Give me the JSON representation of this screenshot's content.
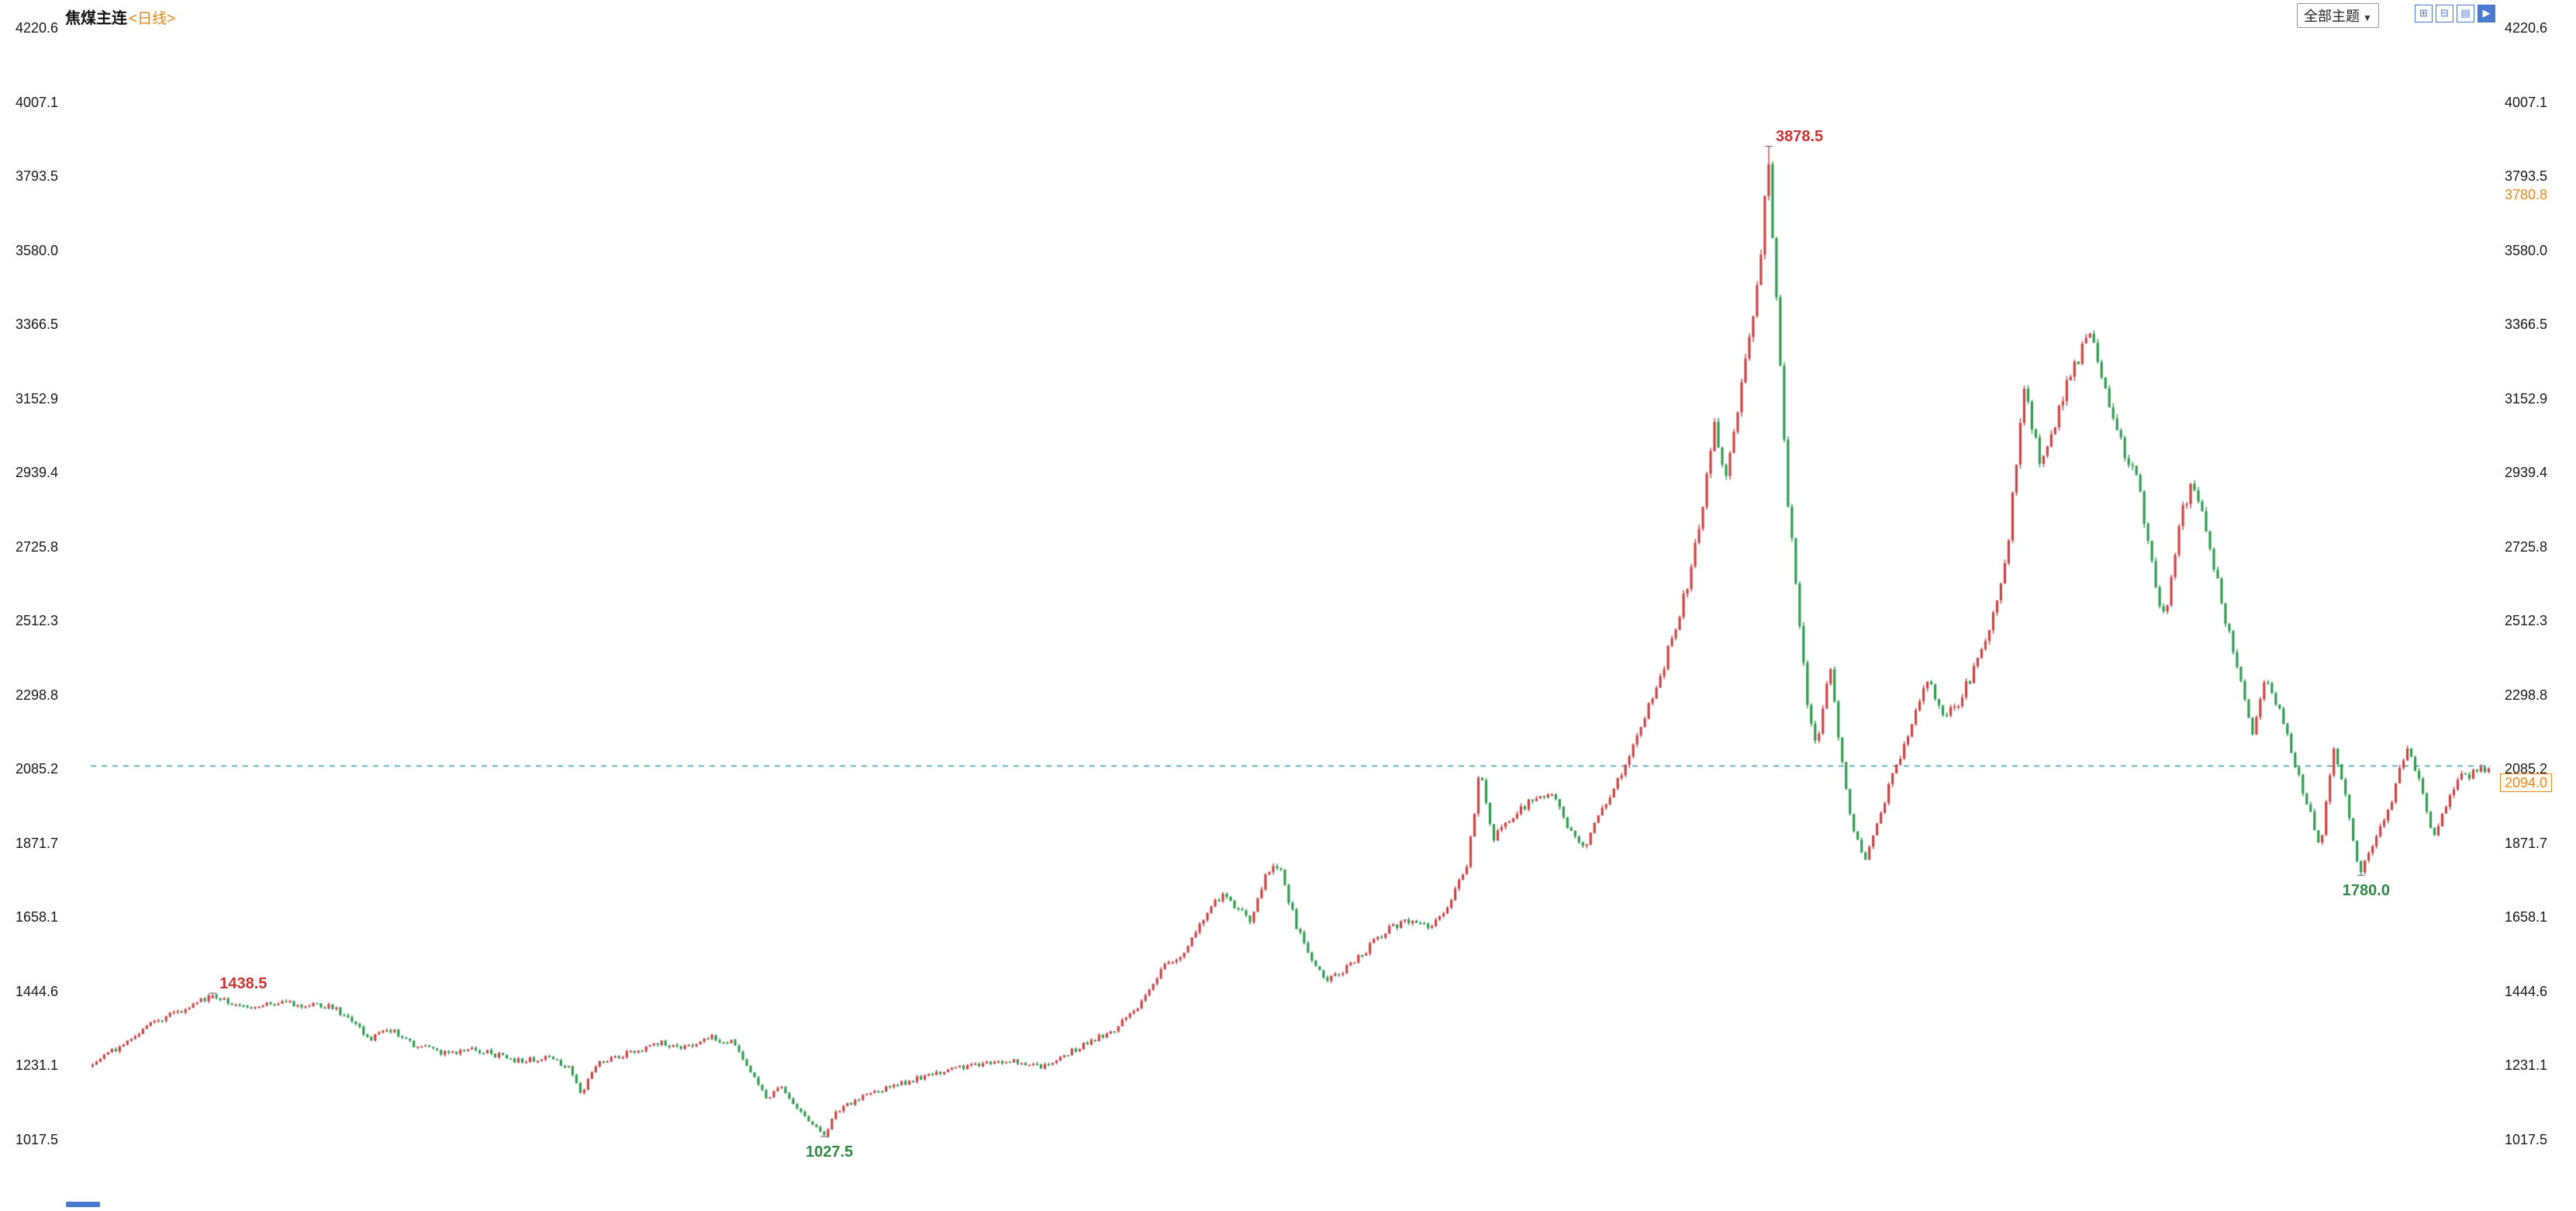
{
  "header": {
    "instrument": "焦煤主连",
    "period": "<日线>",
    "theme_button": "全部主题",
    "theme_button_arrow": "▼"
  },
  "toolbar": {
    "icons": [
      {
        "name": "multi-window-layout-icon",
        "glyph": "⊞"
      },
      {
        "name": "grid-layout-icon",
        "glyph": "⊟"
      },
      {
        "name": "kline-panel-icon",
        "glyph": "▤"
      },
      {
        "name": "next-page-icon",
        "glyph": "▶"
      }
    ]
  },
  "chart_data": {
    "type": "candlestick",
    "title": "焦煤主连 日线",
    "y_axis": {
      "max": 4220.6,
      "min": 1017.5,
      "side": "both",
      "ticks": [
        "4220.6",
        "4007.1",
        "3793.5",
        "3580.0",
        "3366.5",
        "3152.9",
        "2939.4",
        "2725.8",
        "2512.3",
        "2298.8",
        "2085.2",
        "1871.7",
        "1658.1",
        "1444.6",
        "1231.1",
        "1017.5"
      ]
    },
    "grid": "off",
    "last_price": 2094.0,
    "last_price_display": "2094.0",
    "last_price_line_color": "#2f9db4",
    "axis_marker_orange": "3780.8",
    "up_color": "#cb4343",
    "down_color": "#2f9b50",
    "candle_count": 620,
    "annotations": [
      {
        "value": "1438.5",
        "price": 1438.5,
        "frac": 0.05,
        "type": "high",
        "color": "#cc3333"
      },
      {
        "value": "3878.5",
        "price": 3878.5,
        "frac": 0.699,
        "type": "high",
        "color": "#cc3333"
      },
      {
        "value": "1027.5",
        "price": 1027.5,
        "frac": 0.305,
        "type": "low",
        "color": "#2e8b46"
      },
      {
        "value": "1780.0",
        "price": 1780.0,
        "frac": 0.946,
        "type": "low",
        "color": "#2e8b46"
      }
    ],
    "price_path": [
      [
        0.0,
        1232
      ],
      [
        0.01,
        1280
      ],
      [
        0.024,
        1355
      ],
      [
        0.038,
        1390
      ],
      [
        0.05,
        1438
      ],
      [
        0.062,
        1398
      ],
      [
        0.082,
        1412
      ],
      [
        0.1,
        1398
      ],
      [
        0.11,
        1352
      ],
      [
        0.115,
        1302
      ],
      [
        0.124,
        1336
      ],
      [
        0.134,
        1292
      ],
      [
        0.148,
        1265
      ],
      [
        0.158,
        1282
      ],
      [
        0.168,
        1262
      ],
      [
        0.179,
        1242
      ],
      [
        0.189,
        1256
      ],
      [
        0.199,
        1226
      ],
      [
        0.204,
        1152
      ],
      [
        0.211,
        1240
      ],
      [
        0.223,
        1266
      ],
      [
        0.237,
        1296
      ],
      [
        0.247,
        1282
      ],
      [
        0.258,
        1312
      ],
      [
        0.268,
        1296
      ],
      [
        0.275,
        1202
      ],
      [
        0.282,
        1132
      ],
      [
        0.287,
        1172
      ],
      [
        0.293,
        1112
      ],
      [
        0.3,
        1062
      ],
      [
        0.305,
        1028
      ],
      [
        0.311,
        1102
      ],
      [
        0.32,
        1136
      ],
      [
        0.33,
        1162
      ],
      [
        0.344,
        1192
      ],
      [
        0.357,
        1216
      ],
      [
        0.371,
        1236
      ],
      [
        0.385,
        1246
      ],
      [
        0.395,
        1226
      ],
      [
        0.406,
        1262
      ],
      [
        0.416,
        1302
      ],
      [
        0.426,
        1332
      ],
      [
        0.437,
        1402
      ],
      [
        0.447,
        1512
      ],
      [
        0.456,
        1562
      ],
      [
        0.464,
        1662
      ],
      [
        0.471,
        1722
      ],
      [
        0.478,
        1682
      ],
      [
        0.483,
        1642
      ],
      [
        0.49,
        1792
      ],
      [
        0.495,
        1812
      ],
      [
        0.502,
        1642
      ],
      [
        0.509,
        1522
      ],
      [
        0.515,
        1472
      ],
      [
        0.522,
        1502
      ],
      [
        0.529,
        1546
      ],
      [
        0.54,
        1622
      ],
      [
        0.55,
        1652
      ],
      [
        0.559,
        1632
      ],
      [
        0.567,
        1702
      ],
      [
        0.574,
        1822
      ],
      [
        0.579,
        2088
      ],
      [
        0.584,
        1882
      ],
      [
        0.591,
        1942
      ],
      [
        0.6,
        1992
      ],
      [
        0.608,
        2022
      ],
      [
        0.615,
        1932
      ],
      [
        0.622,
        1852
      ],
      [
        0.63,
        1972
      ],
      [
        0.639,
        2092
      ],
      [
        0.646,
        2202
      ],
      [
        0.653,
        2322
      ],
      [
        0.66,
        2482
      ],
      [
        0.667,
        2652
      ],
      [
        0.672,
        2852
      ],
      [
        0.677,
        3102
      ],
      [
        0.681,
        2902
      ],
      [
        0.685,
        3052
      ],
      [
        0.691,
        3302
      ],
      [
        0.696,
        3552
      ],
      [
        0.699,
        3878
      ],
      [
        0.703,
        3402
      ],
      [
        0.707,
        2902
      ],
      [
        0.711,
        2602
      ],
      [
        0.716,
        2252
      ],
      [
        0.72,
        2152
      ],
      [
        0.725,
        2402
      ],
      [
        0.73,
        2102
      ],
      [
        0.735,
        1902
      ],
      [
        0.74,
        1822
      ],
      [
        0.746,
        1952
      ],
      [
        0.753,
        2102
      ],
      [
        0.76,
        2222
      ],
      [
        0.766,
        2352
      ],
      [
        0.772,
        2242
      ],
      [
        0.779,
        2282
      ],
      [
        0.786,
        2382
      ],
      [
        0.792,
        2502
      ],
      [
        0.799,
        2702
      ],
      [
        0.806,
        3202
      ],
      [
        0.813,
        2952
      ],
      [
        0.82,
        3102
      ],
      [
        0.827,
        3252
      ],
      [
        0.834,
        3332
      ],
      [
        0.841,
        3152
      ],
      [
        0.848,
        3002
      ],
      [
        0.854,
        2902
      ],
      [
        0.861,
        2602
      ],
      [
        0.865,
        2522
      ],
      [
        0.871,
        2802
      ],
      [
        0.876,
        2902
      ],
      [
        0.882,
        2782
      ],
      [
        0.889,
        2552
      ],
      [
        0.896,
        2352
      ],
      [
        0.901,
        2182
      ],
      [
        0.907,
        2352
      ],
      [
        0.913,
        2252
      ],
      [
        0.919,
        2102
      ],
      [
        0.926,
        1952
      ],
      [
        0.93,
        1852
      ],
      [
        0.935,
        2152
      ],
      [
        0.941,
        1982
      ],
      [
        0.946,
        1782
      ],
      [
        0.952,
        1882
      ],
      [
        0.959,
        1982
      ],
      [
        0.966,
        2152
      ],
      [
        0.971,
        2052
      ],
      [
        0.977,
        1892
      ],
      [
        0.983,
        2002
      ],
      [
        0.989,
        2062
      ],
      [
        1.0,
        2094
      ]
    ]
  }
}
